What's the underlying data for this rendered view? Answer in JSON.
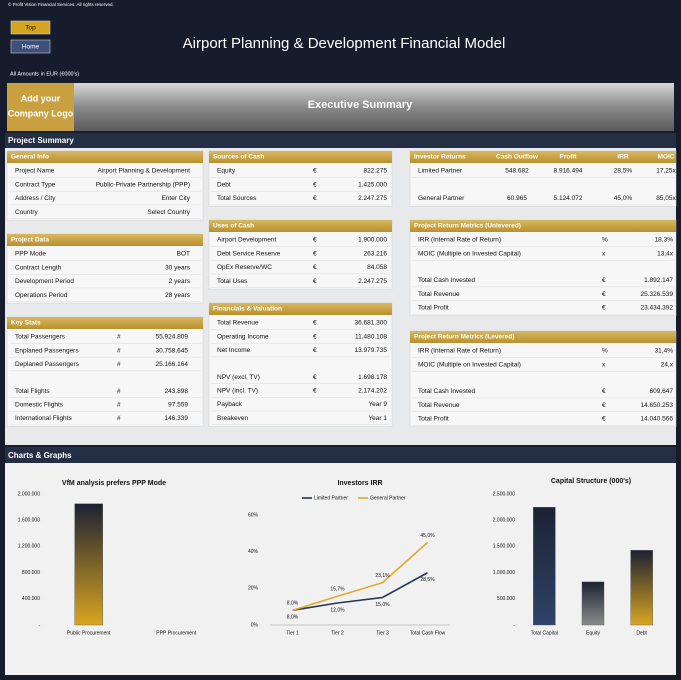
{
  "header": {
    "copyright": "© Profit Vision Financial Services. All rights reserved.",
    "buttons": [
      "Top",
      "Home"
    ],
    "title": "Airport Planning & Development Financial Model",
    "amounts_note": "All Amounts in  EUR (€000's)"
  },
  "banner": {
    "logo": [
      "Add your",
      "Company Logo"
    ],
    "title": "Executive Summary"
  },
  "sections": [
    "Project Summary",
    "Charts & Graphs"
  ],
  "tables": [
    {
      "title": "General Info",
      "groups": [
        [
          [
            "Project Name",
            "Airport Planning & Development"
          ],
          [
            "Contract Type",
            "Public-Private Partnership (PPP)"
          ],
          [
            "Address / City",
            "Enter City"
          ],
          [
            "Country",
            "Select Country"
          ]
        ]
      ]
    },
    {
      "title": "Project Data",
      "groups": [
        [
          [
            "PPP Mode",
            "BOT"
          ],
          [
            "Contract Length",
            "30 years"
          ],
          [
            "Development Period",
            "2 years"
          ],
          [
            "Operations Period",
            "28 years"
          ]
        ]
      ]
    },
    {
      "title": "Key Stats",
      "groups": [
        [
          [
            "Total Passengers",
            "#",
            "55.924.809"
          ],
          [
            "Enplaned Passengers",
            "#",
            "30.758.645"
          ],
          [
            "Deplaned Passengers",
            "#",
            "25.166.164"
          ]
        ],
        [
          [
            "Total Flights",
            "#",
            "243.898"
          ],
          [
            "Domestic Flights",
            "#",
            "97.559"
          ],
          [
            "International Flights",
            "#",
            "146.339"
          ]
        ]
      ]
    },
    {
      "title": "Sources of Cash",
      "groups": [
        [
          [
            "Equity",
            "€",
            "822.275"
          ],
          [
            "Debt",
            "€",
            "1.425.000"
          ],
          [
            "Total Sources",
            "€",
            "2.247.275"
          ]
        ]
      ]
    },
    {
      "title": "Uses of Cash",
      "groups": [
        [
          [
            "Airport Development",
            "€",
            "1.900.000"
          ],
          [
            "Debt Service Reserve",
            "€",
            "263.216"
          ],
          [
            "OpEx Reserve/WC",
            "€",
            "84.058"
          ],
          [
            "Total Uses",
            "€",
            "2.247.275"
          ]
        ]
      ]
    },
    {
      "title": "Financials & Valuation",
      "groups": [
        [
          [
            "Total Revenue",
            "€",
            "36.681.300"
          ],
          [
            "Operating Income",
            "€",
            "11.480.108"
          ],
          [
            "Net Income",
            "€",
            "13.979.735"
          ]
        ],
        [
          [
            "NPV (excl. TV)",
            "€",
            "1.698.178"
          ],
          [
            "NPV (incl. TV)",
            "€",
            "2.174.202"
          ],
          [
            "Payback",
            "",
            "Year 9"
          ],
          [
            "Breakeven",
            "",
            "Year 1"
          ]
        ]
      ]
    },
    {
      "title": "Investor Returns",
      "columns": [
        "Cash Outflow",
        "Profit",
        "IRR",
        "MOIC"
      ],
      "groups": [
        [
          [
            "Limited Partner",
            "548.682",
            "8.916.494",
            "28,5%",
            "17,25x"
          ]
        ],
        [
          [
            "General Partner",
            "60.965",
            "5.124.072",
            "45,0%",
            "85,05x"
          ]
        ]
      ]
    },
    {
      "title": "Project Return Metrics (Unlevered)",
      "groups": [
        [
          [
            "IRR (Internal Rate of Return)",
            "%",
            "18,3%"
          ],
          [
            "MOIC (Multiple on Invested Capital)",
            "x",
            "13,4x"
          ]
        ],
        [
          [
            "Total Cash Invested",
            "€",
            "1.892.147"
          ],
          [
            "Total Revenue",
            "€",
            "25.326.539"
          ],
          [
            "Total Profit",
            "€",
            "23.434.392"
          ]
        ]
      ]
    },
    {
      "title": "Project Return Metrics (Levered)",
      "groups": [
        [
          [
            "IRR (Internal Rate of Return)",
            "%",
            "31,4%"
          ],
          [
            "MOIC (Multiple on Invested Capital)",
            "x",
            "24,x"
          ]
        ],
        [
          [
            "Total Cash Invested",
            "€",
            "609.647"
          ],
          [
            "Total Revenue",
            "€",
            "14.650.253"
          ],
          [
            "Total Profit",
            "€",
            "14.040.566"
          ]
        ]
      ]
    }
  ],
  "chart_data": [
    {
      "type": "bar",
      "title": "VfM analysis prefers PPP Mode",
      "categories": [
        "Public Procurement",
        "PPP Procurement"
      ],
      "values": [
        1850000,
        0
      ],
      "color": "#d9a520",
      "ylim": [
        0,
        2000000
      ],
      "yticks": [
        {
          "value": 0,
          "label": "-"
        },
        {
          "value": 400000,
          "label": "400.000"
        },
        {
          "value": 800000,
          "label": "800.000"
        },
        {
          "value": 1200000,
          "label": "1.200.000"
        },
        {
          "value": 1600000,
          "label": "1.600.000"
        },
        {
          "value": 2000000,
          "label": "2.000.000"
        }
      ]
    },
    {
      "type": "line",
      "title": "Investors IRR",
      "categories": [
        "Tier 1",
        "Tier 2",
        "Tier 3",
        "Total Cash Flow"
      ],
      "ylim": [
        0,
        60
      ],
      "yticks": [
        {
          "value": 0,
          "label": "0%"
        },
        {
          "value": 20,
          "label": "20%"
        },
        {
          "value": 40,
          "label": "40%"
        },
        {
          "value": 60,
          "label": "60%"
        }
      ],
      "legend": "top",
      "series": [
        {
          "name": "Limited Partner",
          "color": "#2b3550",
          "values": [
            8.0,
            12.0,
            15.0,
            28.5
          ],
          "value_labels": [
            "8,0%",
            "12,0%",
            "15,0%",
            "28,5%"
          ]
        },
        {
          "name": "General Partner",
          "color": "#e0a92a",
          "values": [
            8.0,
            15.7,
            23.1,
            45.0
          ],
          "value_labels": [
            "8,0%",
            "15,7%",
            "23,1%",
            "45,0%"
          ]
        }
      ]
    },
    {
      "type": "bar",
      "title": "Capital Structure (000's)",
      "categories": [
        "Total Capital",
        "Equity",
        "Debt"
      ],
      "values": [
        2247275,
        822275,
        1425000
      ],
      "colors": [
        "#2e4468",
        "#8c8c8c",
        "#d9a520"
      ],
      "ylim": [
        0,
        2500000
      ],
      "yticks": [
        {
          "value": 0,
          "label": "-"
        },
        {
          "value": 500000,
          "label": "500.000"
        },
        {
          "value": 1000000,
          "label": "1.000.000"
        },
        {
          "value": 1500000,
          "label": "1.500.000"
        },
        {
          "value": 2000000,
          "label": "2.000.000"
        },
        {
          "value": 2500000,
          "label": "2.500.000"
        }
      ]
    }
  ]
}
